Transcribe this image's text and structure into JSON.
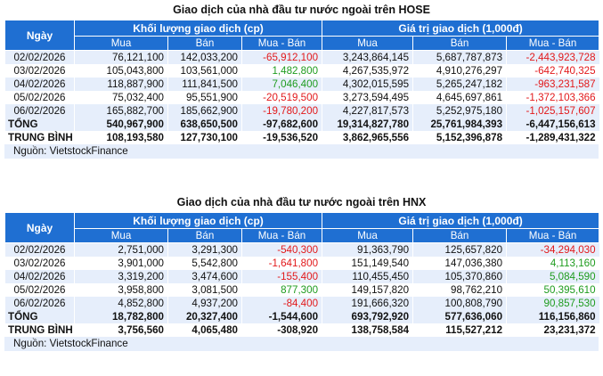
{
  "hose": {
    "title": "Giao dịch của nhà đầu tư nước ngoài trên HOSE",
    "header": {
      "date": "Ngày",
      "volume_group": "Khối lượng giao dịch (cp)",
      "value_group": "Giá trị giao dịch (1,000đ)",
      "buy": "Mua",
      "sell": "Bán",
      "net": "Mua - Bán"
    },
    "rows": [
      {
        "date": "02/02/2026",
        "vol_buy": "76,121,100",
        "vol_sell": "142,033,200",
        "vol_net": "-65,912,100",
        "val_buy": "3,243,864,145",
        "val_sell": "5,687,787,873",
        "val_net": "-2,443,923,728"
      },
      {
        "date": "03/02/2026",
        "vol_buy": "105,043,800",
        "vol_sell": "103,561,000",
        "vol_net": "1,482,800",
        "val_buy": "4,267,535,972",
        "val_sell": "4,910,276,297",
        "val_net": "-642,740,325"
      },
      {
        "date": "04/02/2026",
        "vol_buy": "118,887,900",
        "vol_sell": "111,841,500",
        "vol_net": "7,046,400",
        "val_buy": "4,302,015,595",
        "val_sell": "5,265,247,182",
        "val_net": "-963,231,587"
      },
      {
        "date": "05/02/2026",
        "vol_buy": "75,032,400",
        "vol_sell": "95,551,900",
        "vol_net": "-20,519,500",
        "val_buy": "3,273,594,495",
        "val_sell": "4,645,697,861",
        "val_net": "-1,372,103,366"
      },
      {
        "date": "06/02/2026",
        "vol_buy": "165,882,700",
        "vol_sell": "185,662,900",
        "vol_net": "-19,780,200",
        "val_buy": "4,227,817,573",
        "val_sell": "5,252,975,180",
        "val_net": "-1,025,157,607"
      }
    ],
    "total": {
      "label": "TỔNG",
      "vol_buy": "540,967,900",
      "vol_sell": "638,650,500",
      "vol_net": "-97,682,600",
      "val_buy": "19,314,827,780",
      "val_sell": "25,761,984,393",
      "val_net": "-6,447,156,613"
    },
    "average": {
      "label": "TRUNG BÌNH",
      "vol_buy": "108,193,580",
      "vol_sell": "127,730,100",
      "vol_net": "-19,536,520",
      "val_buy": "3,862,965,556",
      "val_sell": "5,152,396,878",
      "val_net": "-1,289,431,322"
    },
    "source": "Nguồn: VietstockFinance"
  },
  "hnx": {
    "title": "Giao dịch của nhà đầu tư nước ngoài trên HNX",
    "header": {
      "date": "Ngày",
      "volume_group": "Khối lượng giao dịch (cp)",
      "value_group": "Giá trị giao dịch (1,000đ)",
      "buy": "Mua",
      "sell": "Bán",
      "net": "Mua - Bán"
    },
    "rows": [
      {
        "date": "02/02/2026",
        "vol_buy": "2,751,000",
        "vol_sell": "3,291,300",
        "vol_net": "-540,300",
        "val_buy": "91,363,790",
        "val_sell": "125,657,820",
        "val_net": "-34,294,030"
      },
      {
        "date": "03/02/2026",
        "vol_buy": "3,901,000",
        "vol_sell": "5,542,800",
        "vol_net": "-1,641,800",
        "val_buy": "151,149,540",
        "val_sell": "147,036,380",
        "val_net": "4,113,160"
      },
      {
        "date": "04/02/2026",
        "vol_buy": "3,319,200",
        "vol_sell": "3,474,600",
        "vol_net": "-155,400",
        "val_buy": "110,455,450",
        "val_sell": "105,370,860",
        "val_net": "5,084,590"
      },
      {
        "date": "05/02/2026",
        "vol_buy": "3,958,800",
        "vol_sell": "3,081,500",
        "vol_net": "877,300",
        "val_buy": "149,157,820",
        "val_sell": "98,762,210",
        "val_net": "50,395,610"
      },
      {
        "date": "06/02/2026",
        "vol_buy": "4,852,800",
        "vol_sell": "4,937,200",
        "vol_net": "-84,400",
        "val_buy": "191,666,320",
        "val_sell": "100,808,790",
        "val_net": "90,857,530"
      }
    ],
    "total": {
      "label": "TỔNG",
      "vol_buy": "18,782,800",
      "vol_sell": "20,327,400",
      "vol_net": "-1,544,600",
      "val_buy": "693,792,920",
      "val_sell": "577,636,060",
      "val_net": "116,156,860"
    },
    "average": {
      "label": "TRUNG BÌNH",
      "vol_buy": "3,756,560",
      "vol_sell": "4,065,480",
      "vol_net": "-308,920",
      "val_buy": "138,758,584",
      "val_sell": "115,527,212",
      "val_net": "23,231,372"
    },
    "source": "Nguồn: VietstockFinance"
  },
  "colors": {
    "header_bg": "#1f6fd2",
    "row_alt_bg": "#e6eefb",
    "negative": "#e2191b",
    "positive": "#1f9c1f"
  }
}
